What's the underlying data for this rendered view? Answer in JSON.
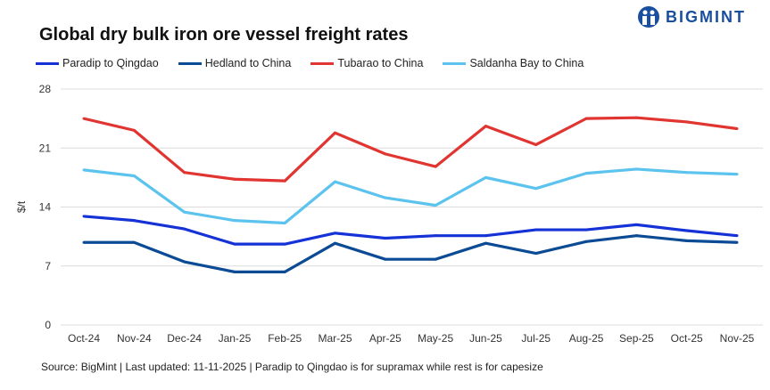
{
  "brand": {
    "logo_text": "BIGMINT",
    "color": "#1a4fa0"
  },
  "chart_data": {
    "type": "line",
    "title": "Global dry bulk iron ore vessel freight rates",
    "xlabel": "",
    "ylabel": "$/t",
    "ylim": [
      0,
      28
    ],
    "yticks": [
      0,
      7,
      14,
      21,
      28
    ],
    "grid": true,
    "legend_position": "top",
    "categories": [
      "Oct-24",
      "Nov-24",
      "Dec-24",
      "Jan-25",
      "Feb-25",
      "Mar-25",
      "Apr-25",
      "May-25",
      "Jun-25",
      "Jul-25",
      "Aug-25",
      "Sep-25",
      "Oct-25",
      "Nov-25"
    ],
    "series": [
      {
        "name": "Paradip to Qingdao",
        "color": "#1432d6",
        "values": [
          12.9,
          12.4,
          11.4,
          9.6,
          9.6,
          10.9,
          10.3,
          10.6,
          10.6,
          11.3,
          11.3,
          11.9,
          11.2,
          10.6
        ]
      },
      {
        "name": "Hedland to China",
        "color": "#0b4a94",
        "values": [
          9.8,
          9.8,
          7.5,
          6.3,
          6.3,
          9.7,
          7.8,
          7.8,
          9.7,
          8.5,
          9.9,
          10.6,
          10.0,
          9.8
        ]
      },
      {
        "name": "Tubarao to China",
        "color": "#e03530",
        "values": [
          24.5,
          23.1,
          18.1,
          17.3,
          17.1,
          22.8,
          20.3,
          18.8,
          23.6,
          21.4,
          24.5,
          24.6,
          24.1,
          23.3
        ]
      },
      {
        "name": "Saldanha Bay to China",
        "color": "#5bc3ee",
        "values": [
          18.4,
          17.7,
          13.4,
          12.4,
          12.1,
          17.0,
          15.1,
          14.2,
          17.5,
          16.2,
          18.0,
          18.5,
          18.1,
          17.9
        ]
      }
    ]
  },
  "source": "Source: BigMint | Last updated: 11-11-2025 | Paradip to Qingdao is for supramax while rest is for capesize"
}
